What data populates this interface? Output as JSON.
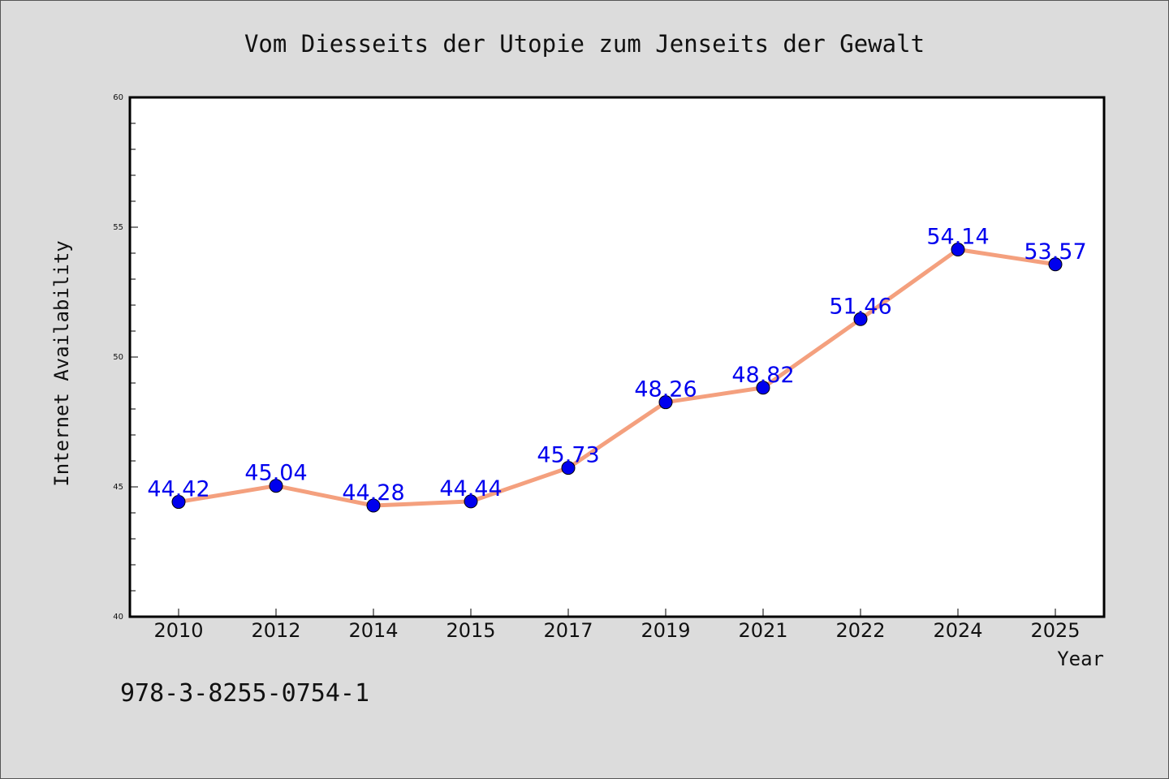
{
  "chart_data": {
    "type": "line",
    "title": "Vom Diesseits der Utopie zum Jenseits der Gewalt",
    "xlabel": "Year",
    "ylabel": "Internet Availability",
    "categories": [
      "2010",
      "2012",
      "2014",
      "2015",
      "2017",
      "2019",
      "2021",
      "2022",
      "2024",
      "2025"
    ],
    "series": [
      {
        "values": [
          44.42,
          45.04,
          44.28,
          44.44,
          45.73,
          48.26,
          48.82,
          51.46,
          54.14,
          53.57
        ],
        "labels": [
          "44.42",
          "45.04",
          "44.28",
          "44.44",
          "45.73",
          "48.26",
          "48.82",
          "51.46",
          "54.14",
          "53.57"
        ],
        "line_color": "#f4a07e",
        "marker_color": "#0000ee"
      }
    ],
    "ylim": [
      40,
      60
    ],
    "yticks": [
      "40",
      "45",
      "50",
      "55",
      "60"
    ],
    "grid": false,
    "legend": "none"
  },
  "footer": {
    "isbn": "978-3-8255-0754-1"
  }
}
